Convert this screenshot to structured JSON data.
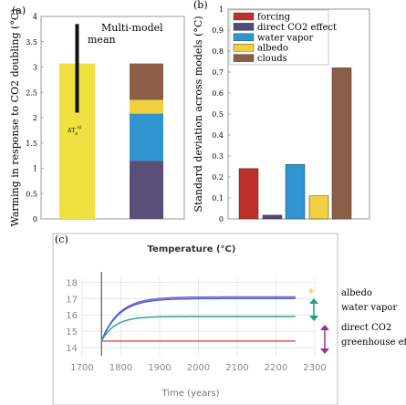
{
  "chart_data": [
    {
      "panel_label": "(a)",
      "type": "bar",
      "ylabel": "Warming in response to CO2 doubling (°C)",
      "ylim": [
        0,
        4
      ],
      "yticks": [
        "0",
        "0.5",
        "1",
        "1.5",
        "2",
        "2.5",
        "3",
        "3.5",
        "4"
      ],
      "annotation": "Multi-model\nmean",
      "annotation_label": "ΔT",
      "annotation_label_sup": "sl",
      "annotation_label_sub": "s",
      "bars": [
        {
          "name": "total",
          "value": 3.07,
          "color": "#f0e040",
          "whisker": {
            "low": 2.1,
            "high": 3.85
          }
        },
        {
          "name": "stack",
          "stacked": true,
          "segments": [
            {
              "name": "greenhouse",
              "value": 1.15,
              "color": "#5a4f78"
            },
            {
              "name": "water vapor",
              "value": 0.93,
              "color": "#2f94d0"
            },
            {
              "name": "albedo",
              "value": 0.27,
              "color": "#f0d040"
            },
            {
              "name": "clouds",
              "value": 0.72,
              "color": "#8c5e48"
            }
          ]
        }
      ]
    },
    {
      "panel_label": "(b)",
      "type": "bar",
      "ylabel": "Standard deviation across models (°C)",
      "ylim": [
        0,
        1
      ],
      "yticks": [
        "0",
        "0.1",
        "0.2",
        "0.3",
        "0.4",
        "0.5",
        "0.6",
        "0.7",
        "0.8",
        "0.9",
        "1"
      ],
      "legend_position": "top-left",
      "categories": [
        "forcing",
        "direct CO2 effect",
        "water vapor",
        "albedo",
        "clouds"
      ],
      "values": [
        0.24,
        0.018,
        0.26,
        0.11,
        0.72
      ],
      "colors": [
        "#c0302a",
        "#4f4a78",
        "#2f94d0",
        "#f0d040",
        "#8c5e48"
      ]
    },
    {
      "panel_label": "(c)",
      "type": "line",
      "title": "Temperature (°C)",
      "xlabel": "Time (years)",
      "xlim": [
        1700,
        2300
      ],
      "ylim": [
        13.5,
        18.3
      ],
      "xticks": [
        "1700",
        "1800",
        "1900",
        "2000",
        "2100",
        "2200",
        "2300"
      ],
      "yticks": [
        "14",
        "15",
        "16",
        "17",
        "18"
      ],
      "event_x": 1750,
      "grid": true,
      "series": [
        {
          "color": "#8a5cd0",
          "start": 14.4,
          "equilibrium": 17.1,
          "tau": 45
        },
        {
          "color": "#3a6ad0",
          "start": 14.4,
          "equilibrium": 17.0,
          "tau": 45
        },
        {
          "color": "#2aa898",
          "start": 14.4,
          "equilibrium": 15.9,
          "tau": 35
        },
        {
          "color": "#d86048",
          "start": 14.4,
          "equilibrium": 14.4,
          "tau": 10
        }
      ],
      "annotations": [
        {
          "text": "albedo",
          "marker": "*",
          "color": "#f0c020"
        },
        {
          "text": "water vapor",
          "marker": "↕",
          "color": "#20a080"
        },
        {
          "text": "direct CO2",
          "marker": "↕",
          "color": "#9a3090"
        },
        {
          "text": "greenhouse ef",
          "marker": "",
          "color": "#9a3090"
        }
      ]
    }
  ]
}
